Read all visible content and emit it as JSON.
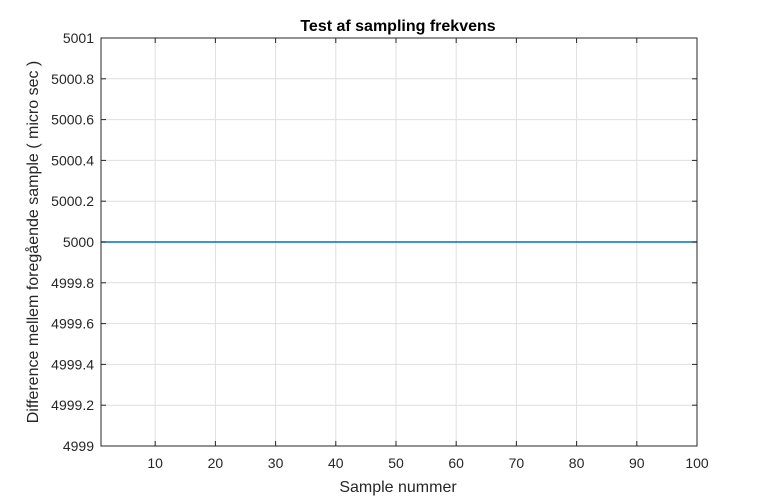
{
  "chart_data": {
    "type": "line",
    "title": "Test af sampling frekvens",
    "xlabel": "Sample nummer",
    "ylabel": "Difference mellem foregående sample ( micro sec )",
    "xlim": [
      1,
      100
    ],
    "ylim": [
      4999,
      5001
    ],
    "x_ticks": [
      10,
      20,
      30,
      40,
      50,
      60,
      70,
      80,
      90,
      100
    ],
    "y_ticks": [
      4999,
      4999.2,
      4999.4,
      4999.6,
      4999.8,
      5000,
      5000.2,
      5000.4,
      5000.6,
      5000.8,
      5001
    ],
    "x_tick_labels": [
      "10",
      "20",
      "30",
      "40",
      "50",
      "60",
      "70",
      "80",
      "90",
      "100"
    ],
    "y_tick_labels": [
      "4999",
      "4999.2",
      "4999.4",
      "4999.6",
      "4999.8",
      "5000",
      "5000.2",
      "5000.4",
      "5000.6",
      "5000.8",
      "5001"
    ],
    "grid": true,
    "series": [
      {
        "x": [
          1,
          100
        ],
        "y": [
          5000,
          5000
        ],
        "color": "#0072bd"
      }
    ]
  }
}
